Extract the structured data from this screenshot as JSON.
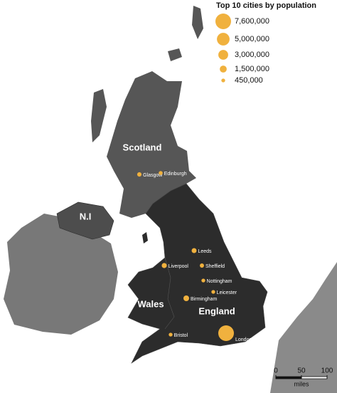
{
  "map": {
    "regions": [
      {
        "label": "Scotland"
      },
      {
        "label": "N.I"
      },
      {
        "label": "Wales"
      },
      {
        "label": "England"
      }
    ],
    "cities": [
      {
        "name": "Glasgow",
        "population": 600000
      },
      {
        "name": "Edinburgh",
        "population": 480000
      },
      {
        "name": "Leeds",
        "population": 750000
      },
      {
        "name": "Sheffield",
        "population": 550000
      },
      {
        "name": "Liverpool",
        "population": 800000
      },
      {
        "name": "Nottingham",
        "population": 450000
      },
      {
        "name": "Leicester",
        "population": 450000
      },
      {
        "name": "Birmingham",
        "population": 1000000
      },
      {
        "name": "Bristol",
        "population": 450000
      },
      {
        "name": "London",
        "population": 7600000
      }
    ],
    "legend": {
      "title": "Top 10 cities by population",
      "sizes": [
        {
          "value": 7600000,
          "label": "7,600,000"
        },
        {
          "value": 5000000,
          "label": "5,000,000"
        },
        {
          "value": 3000000,
          "label": "3,000,000"
        },
        {
          "value": 1500000,
          "label": "1,500,000"
        },
        {
          "value": 450000,
          "label": "450,000"
        }
      ]
    },
    "scale_bar": {
      "ticks": [
        0,
        50,
        100
      ],
      "unit": "miles"
    }
  }
}
